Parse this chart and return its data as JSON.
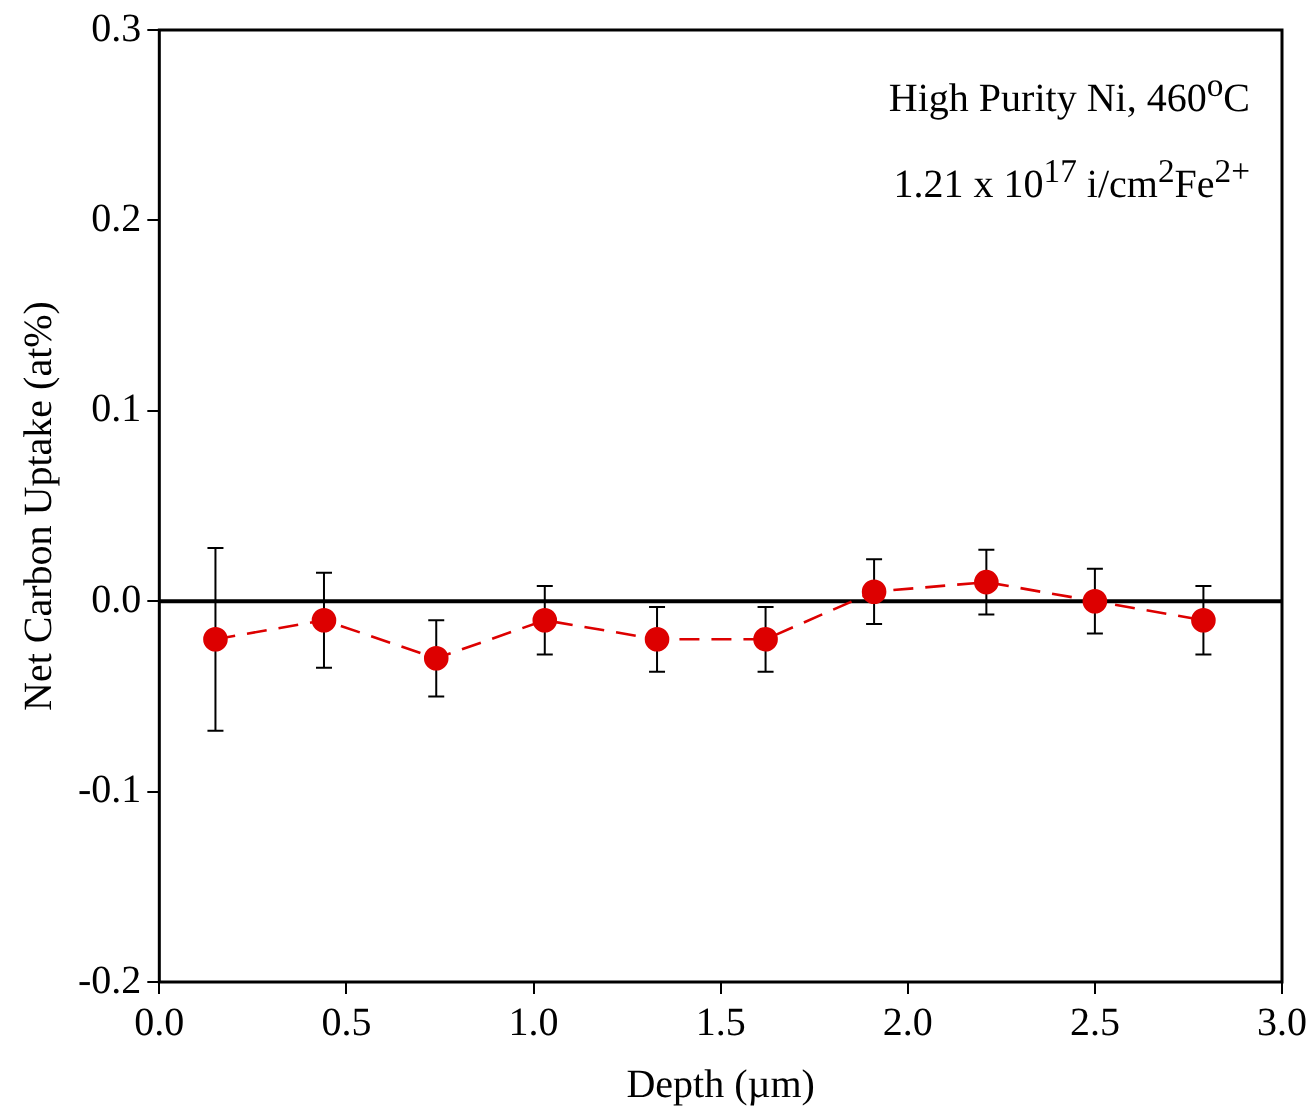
{
  "chart_data": {
    "type": "line",
    "xlabel": "Depth (µm)",
    "ylabel": "Net Carbon Uptake (at%)",
    "x": [
      0.15,
      0.44,
      0.74,
      1.03,
      1.33,
      1.62,
      1.91,
      2.21,
      2.5,
      2.79
    ],
    "series": [
      {
        "color": "#dd0000",
        "values": [
          -0.02,
          -0.01,
          -0.03,
          -0.01,
          -0.02,
          -0.02,
          0.005,
          0.01,
          0.0,
          -0.01
        ],
        "errors": [
          0.048,
          0.025,
          0.02,
          0.018,
          0.017,
          0.017,
          0.017,
          0.017,
          0.017,
          0.018
        ]
      }
    ],
    "marker": "circle",
    "line_style": "dashed",
    "grid": false,
    "legend": false,
    "xlim": [
      0,
      3
    ],
    "xticks": [
      {
        "value": 0,
        "label": "0.0"
      },
      {
        "value": 0.5,
        "label": "0.5"
      },
      {
        "value": 1,
        "label": "1.0"
      },
      {
        "value": 1.5,
        "label": "1.5"
      },
      {
        "value": 2,
        "label": "2.0"
      },
      {
        "value": 2.5,
        "label": "2.5"
      },
      {
        "value": 3,
        "label": "3.0"
      }
    ],
    "ylim": [
      -0.2,
      0.3
    ],
    "yticks": [
      {
        "value": -0.2,
        "label": "-0.2"
      },
      {
        "value": -0.1,
        "label": "-0.1"
      },
      {
        "value": 0,
        "label": "0.0"
      },
      {
        "value": 0.1,
        "label": "0.1"
      },
      {
        "value": 0.2,
        "label": "0.2"
      },
      {
        "value": 0.3,
        "label": "0.3"
      }
    ],
    "ref_lines": [
      {
        "axis": "y",
        "value": 0,
        "color": "#000000"
      }
    ],
    "annotations": [
      "High Purity Ni, 460$^{o}$C",
      "1.21 x 10$^{17}$ i/cm$^{2}$Fe$^{2+}$"
    ]
  }
}
